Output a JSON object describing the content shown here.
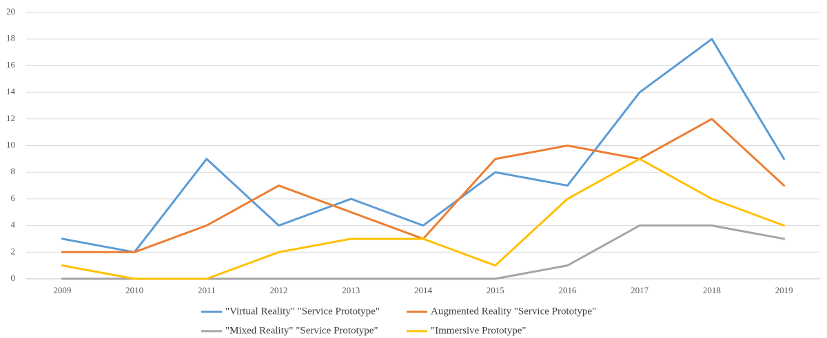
{
  "chart_data": {
    "type": "line",
    "categories": [
      "2009",
      "2010",
      "2011",
      "2012",
      "2013",
      "2014",
      "2015",
      "2016",
      "2017",
      "2018",
      "2019"
    ],
    "series": [
      {
        "name": "\"Virtual Reality\" \"Service Prototype\"",
        "color": "#5b9bd5",
        "values": [
          3,
          2,
          9,
          4,
          6,
          4,
          8,
          7,
          14,
          18,
          9
        ]
      },
      {
        "name": "Augmented Reality \"Service Prototype\"",
        "color": "#ed7d31",
        "values": [
          2,
          2,
          4,
          7,
          5,
          3,
          9,
          10,
          9,
          12,
          7
        ]
      },
      {
        "name": "\"Mixed Reality\" \"Service Prototype\"",
        "color": "#a5a5a5",
        "values": [
          0,
          0,
          0,
          0,
          0,
          0,
          0,
          1,
          4,
          4,
          3
        ]
      },
      {
        "name": "\"Immersive Prototype\"",
        "color": "#ffc000",
        "values": [
          1,
          0,
          0,
          2,
          3,
          3,
          1,
          6,
          9,
          6,
          4
        ]
      }
    ],
    "ylim": [
      0,
      20
    ],
    "yticks": [
      0,
      2,
      4,
      6,
      8,
      10,
      12,
      14,
      16,
      18,
      20
    ],
    "grid": true,
    "legend": "bottom"
  }
}
